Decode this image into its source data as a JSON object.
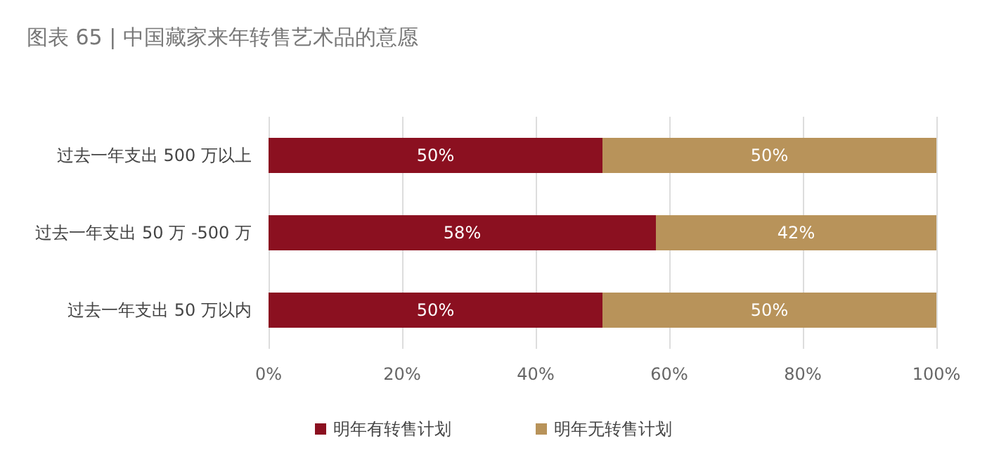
{
  "chart_data": {
    "type": "bar",
    "title": "图表 65 | 中国藏家来年转售艺术品的意愿",
    "orientation": "horizontal",
    "stacked": true,
    "categories": [
      "过去一年支出 500 万以上",
      "过去一年支出 50 万 -500 万",
      "过去一年支出 50 万以内"
    ],
    "series": [
      {
        "name": "明年有转售计划",
        "color": "#8b1020",
        "values": [
          50,
          58,
          50
        ],
        "value_labels": [
          "50%",
          "58%",
          "50%"
        ]
      },
      {
        "name": "明年无转售计划",
        "color": "#b8935a",
        "values": [
          50,
          42,
          50
        ],
        "value_labels": [
          "50%",
          "42%",
          "50%"
        ]
      }
    ],
    "xlim": [
      0,
      100
    ],
    "xticks": [
      {
        "value": 0,
        "label": "0%"
      },
      {
        "value": 20,
        "label": "20%"
      },
      {
        "value": 40,
        "label": "40%"
      },
      {
        "value": 60,
        "label": "60%"
      },
      {
        "value": 80,
        "label": "80%"
      },
      {
        "value": 100,
        "label": "100%"
      }
    ],
    "grid": "x",
    "legend": "bottom"
  }
}
